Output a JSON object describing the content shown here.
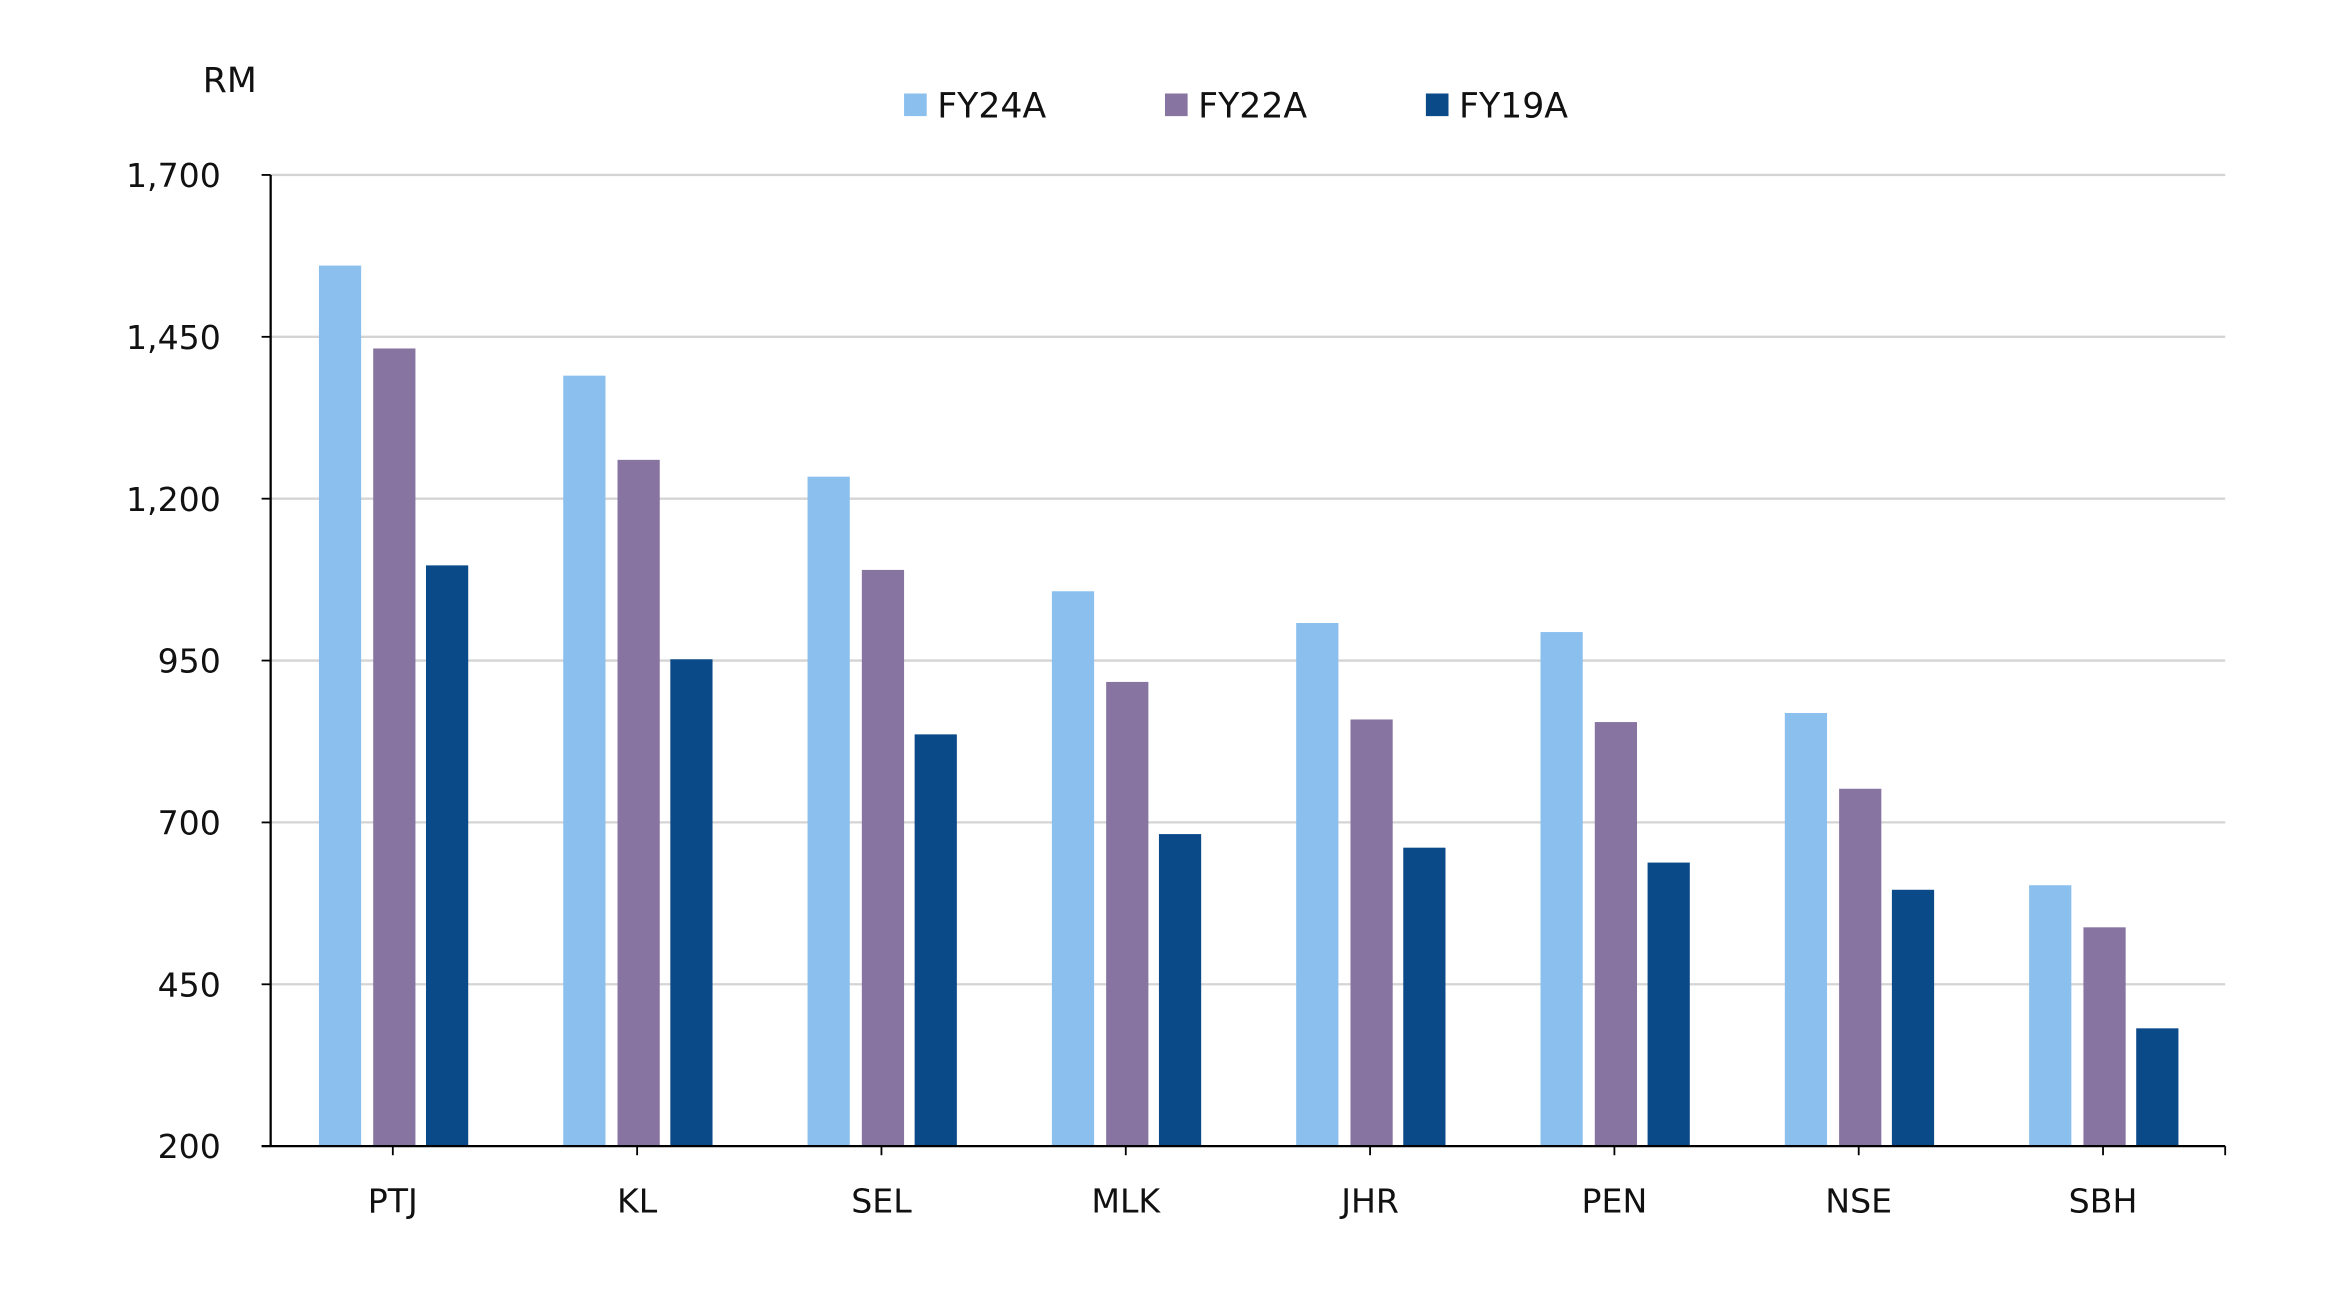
{
  "chart_data": {
    "type": "bar",
    "ylabel": "RM",
    "ylim": [
      200,
      1700
    ],
    "yticks": [
      "200",
      "450",
      "700",
      "950",
      "1,200",
      "1,450",
      "1,700"
    ],
    "ytick_values": [
      200,
      450,
      700,
      950,
      1200,
      1450,
      1700
    ],
    "grid": true,
    "legend_position": "top-center",
    "categories": [
      "PTJ",
      "KL",
      "SEL",
      "MLK",
      "JHR",
      "PEN",
      "NSE",
      "SBH"
    ],
    "series": [
      {
        "name": "FY24A",
        "color": "#8BBFEE",
        "values": [
          1560,
          1390,
          1234,
          1057,
          1008,
          994,
          869,
          603
        ]
      },
      {
        "name": "FY22A",
        "color": "#8774A1",
        "values": [
          1432,
          1260,
          1090,
          917,
          859,
          855,
          752,
          538
        ]
      },
      {
        "name": "FY19A",
        "color": "#0B4A89",
        "values": [
          1097,
          952,
          836,
          682,
          661,
          638,
          596,
          382
        ]
      }
    ]
  }
}
